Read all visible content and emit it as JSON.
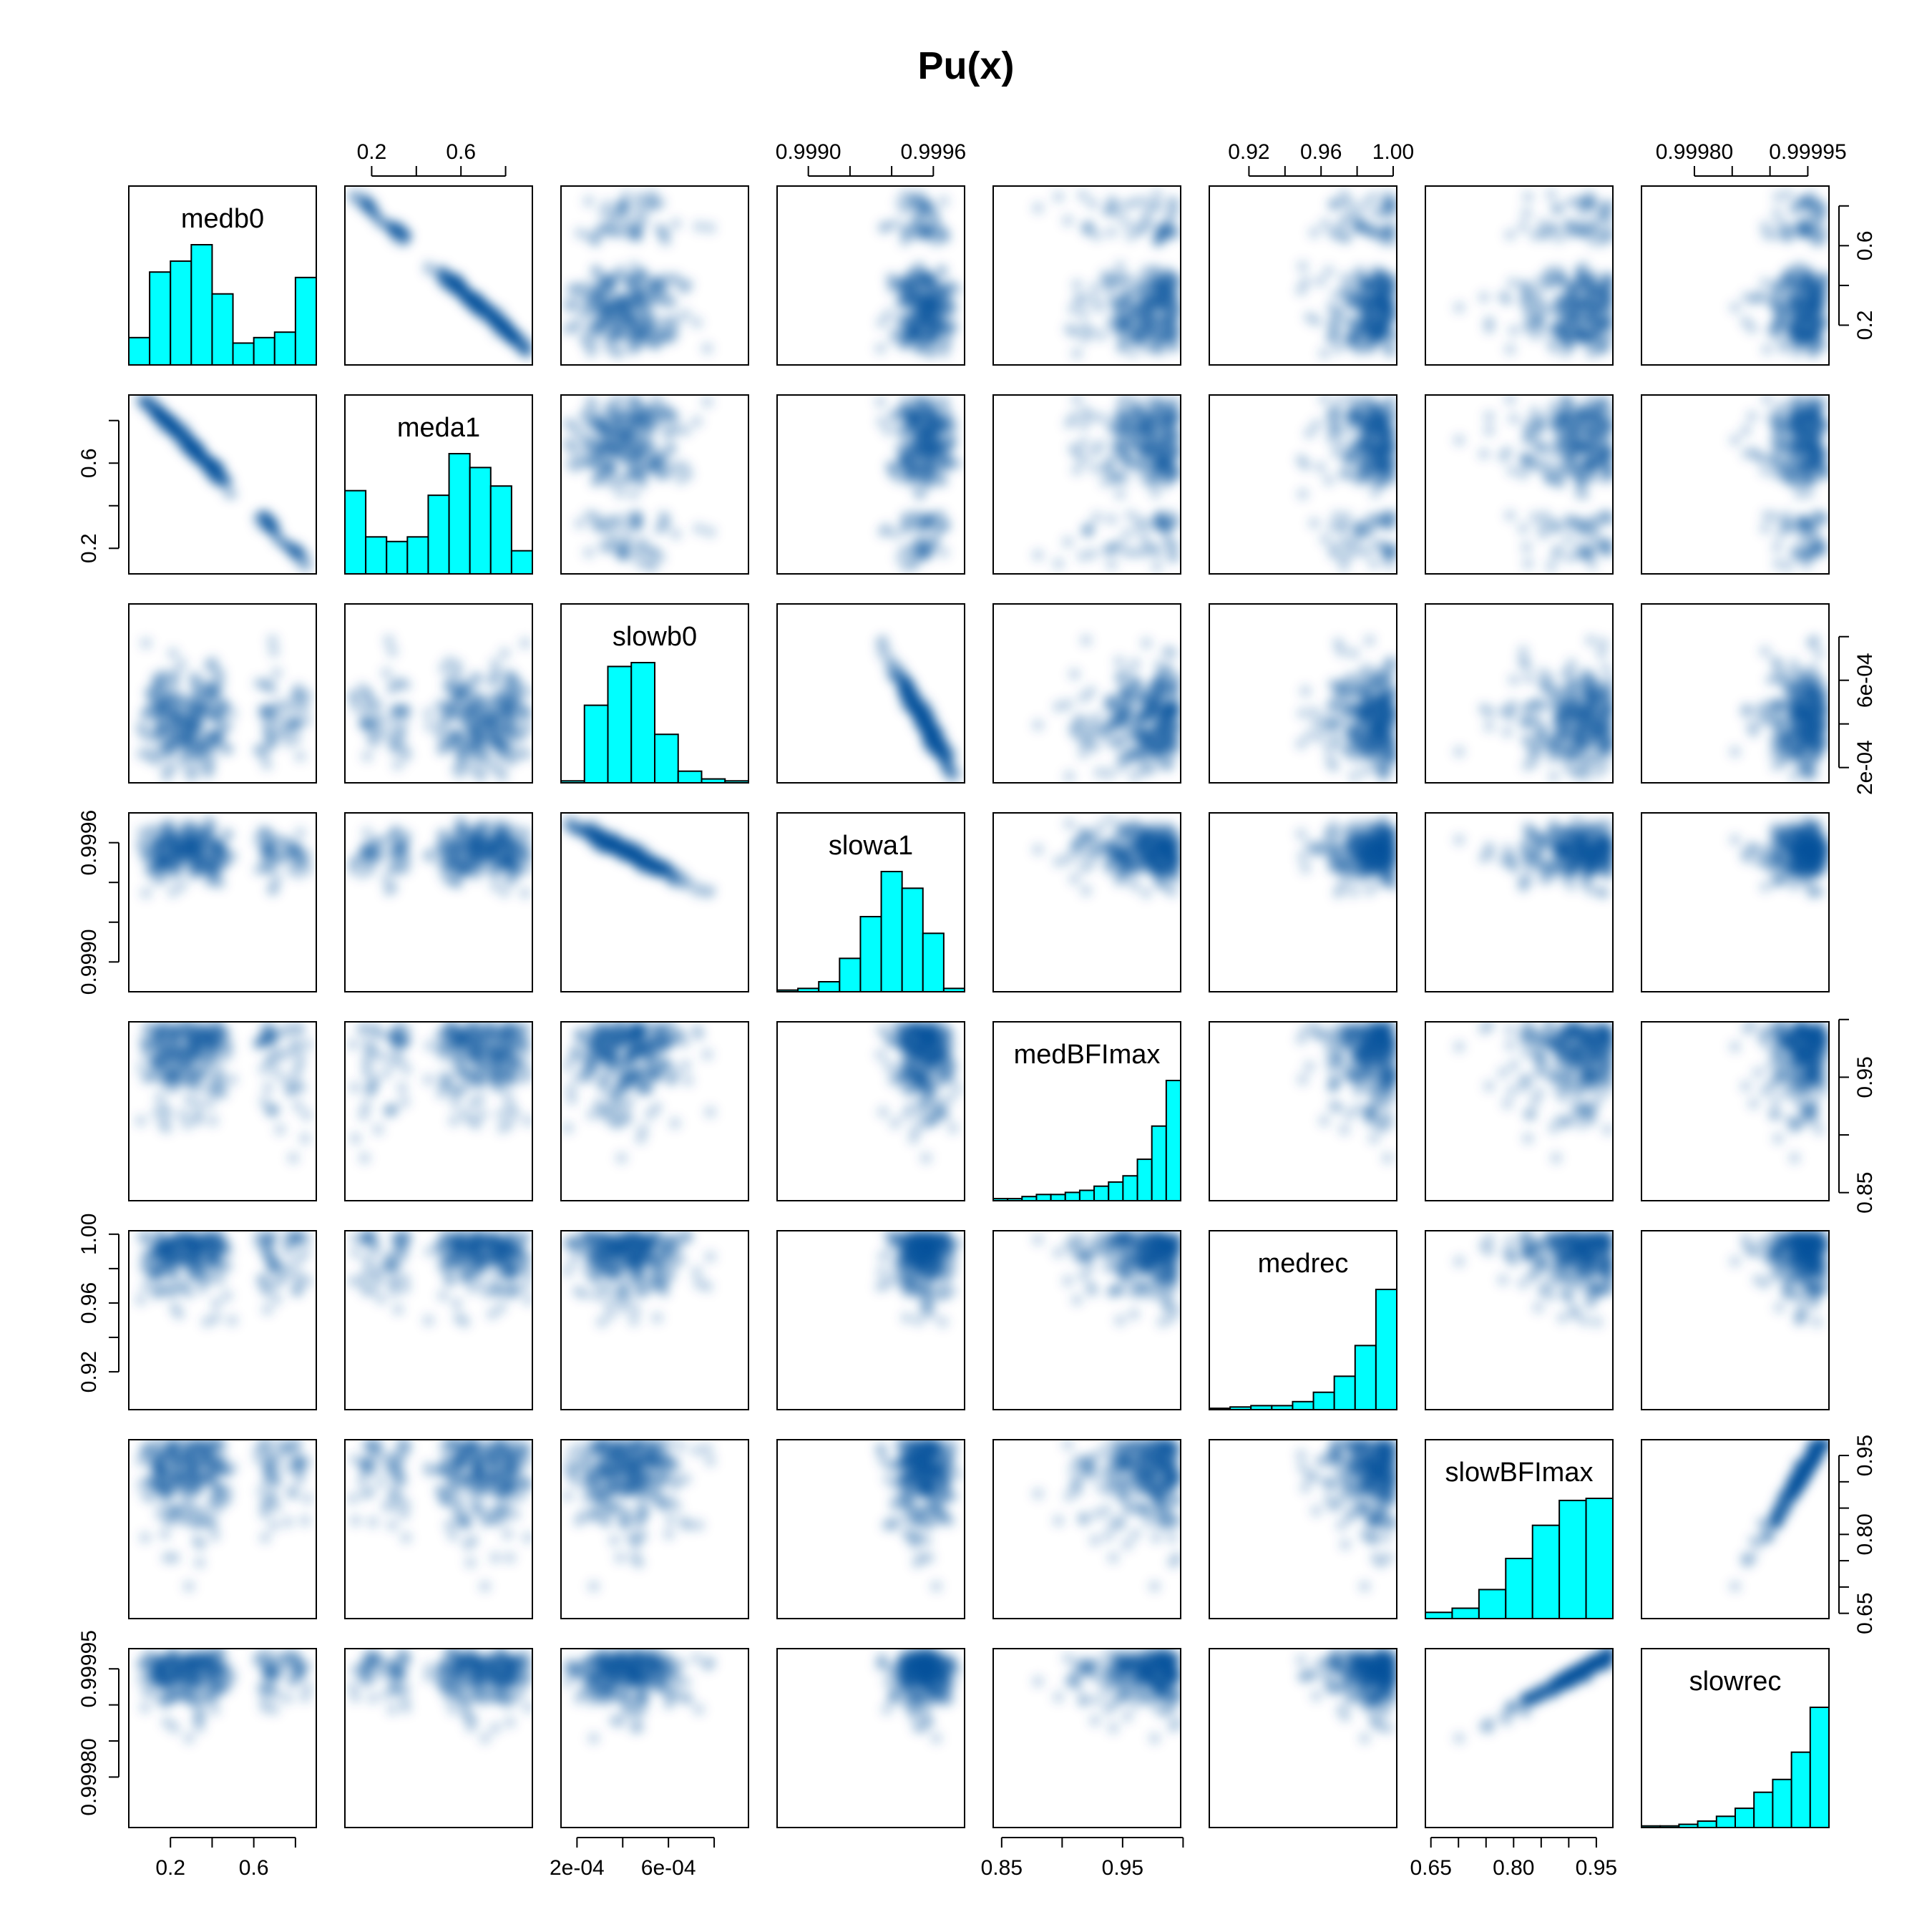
{
  "chart_data": {
    "type": "scatter",
    "title": "Pu(x)",
    "variables": [
      "medb0",
      "meda1",
      "slowb0",
      "slowa1",
      "medBFImax",
      "medrec",
      "slowBFImax",
      "slowrec"
    ],
    "axes": [
      {
        "name": "medb0",
        "range": [
          0.0,
          0.9
        ],
        "ticks": [
          0.2,
          0.4,
          0.6,
          0.8
        ],
        "tick_labels": [
          "0.2",
          "0.6"
        ]
      },
      {
        "name": "meda1",
        "range": [
          0.08,
          0.92
        ],
        "ticks": [
          0.2,
          0.4,
          0.6,
          0.8
        ],
        "tick_labels": [
          "0.2",
          "0.6"
        ]
      },
      {
        "name": "slowb0",
        "range": [
          0.00013,
          0.00095
        ],
        "ticks": [
          0.0002,
          0.0004,
          0.0006,
          0.0008
        ],
        "tick_labels": [
          "2e-04",
          "6e-04"
        ]
      },
      {
        "name": "slowa1",
        "range": [
          0.99885,
          0.99975
        ],
        "ticks": [
          0.999,
          0.9992,
          0.9994,
          0.9996
        ],
        "tick_labels": [
          "0.9990",
          "0.9996"
        ]
      },
      {
        "name": "medBFImax",
        "range": [
          0.843,
          0.998
        ],
        "ticks": [
          0.85,
          0.9,
          0.95,
          1.0
        ],
        "tick_labels": [
          "0.85",
          "0.95"
        ]
      },
      {
        "name": "medrec",
        "range": [
          0.898,
          1.002
        ],
        "ticks": [
          0.92,
          0.94,
          0.96,
          0.98,
          1.0
        ],
        "tick_labels": [
          "0.92",
          "0.96",
          "1.00"
        ]
      },
      {
        "name": "slowBFImax",
        "range": [
          0.64,
          0.98
        ],
        "ticks": [
          0.65,
          0.7,
          0.75,
          0.8,
          0.85,
          0.9,
          0.95
        ],
        "tick_labels": [
          "0.65",
          "0.80",
          "0.95"
        ]
      },
      {
        "name": "slowrec",
        "range": [
          0.99973,
          0.999978
        ],
        "ticks": [
          0.9998,
          0.99985,
          0.9999,
          0.99995
        ],
        "tick_labels": [
          "0.99980",
          "0.99995"
        ]
      }
    ],
    "histograms": [
      {
        "name": "medb0",
        "counts": [
          5,
          17,
          19,
          22,
          13,
          4,
          5,
          6,
          16
        ]
      },
      {
        "name": "meda1",
        "counts": [
          18,
          8,
          7,
          8,
          17,
          26,
          23,
          19,
          5
        ]
      },
      {
        "name": "slowb0",
        "counts": [
          1,
          40,
          60,
          62,
          25,
          6,
          2,
          1
        ]
      },
      {
        "name": "slowa1",
        "counts": [
          1,
          2,
          6,
          20,
          45,
          72,
          62,
          35,
          2
        ]
      },
      {
        "name": "medBFImax",
        "counts": [
          1,
          1,
          2,
          3,
          3,
          4,
          5,
          7,
          9,
          12,
          20,
          36,
          58
        ]
      },
      {
        "name": "medrec",
        "counts": [
          1,
          2,
          3,
          3,
          6,
          13,
          25,
          48,
          90
        ]
      },
      {
        "name": "slowBFImax",
        "counts": [
          3,
          5,
          14,
          29,
          45,
          57,
          58
        ]
      },
      {
        "name": "slowrec",
        "counts": [
          1,
          1,
          2,
          4,
          7,
          12,
          22,
          30,
          47,
          75
        ]
      }
    ],
    "grid": false,
    "legend": "none",
    "panel_style": "smoothed density scatterplot matrix, histograms on diagonal",
    "colors": {
      "density": "#08519c",
      "histogram_fill": "#00ffff",
      "frame": "#000000"
    }
  }
}
